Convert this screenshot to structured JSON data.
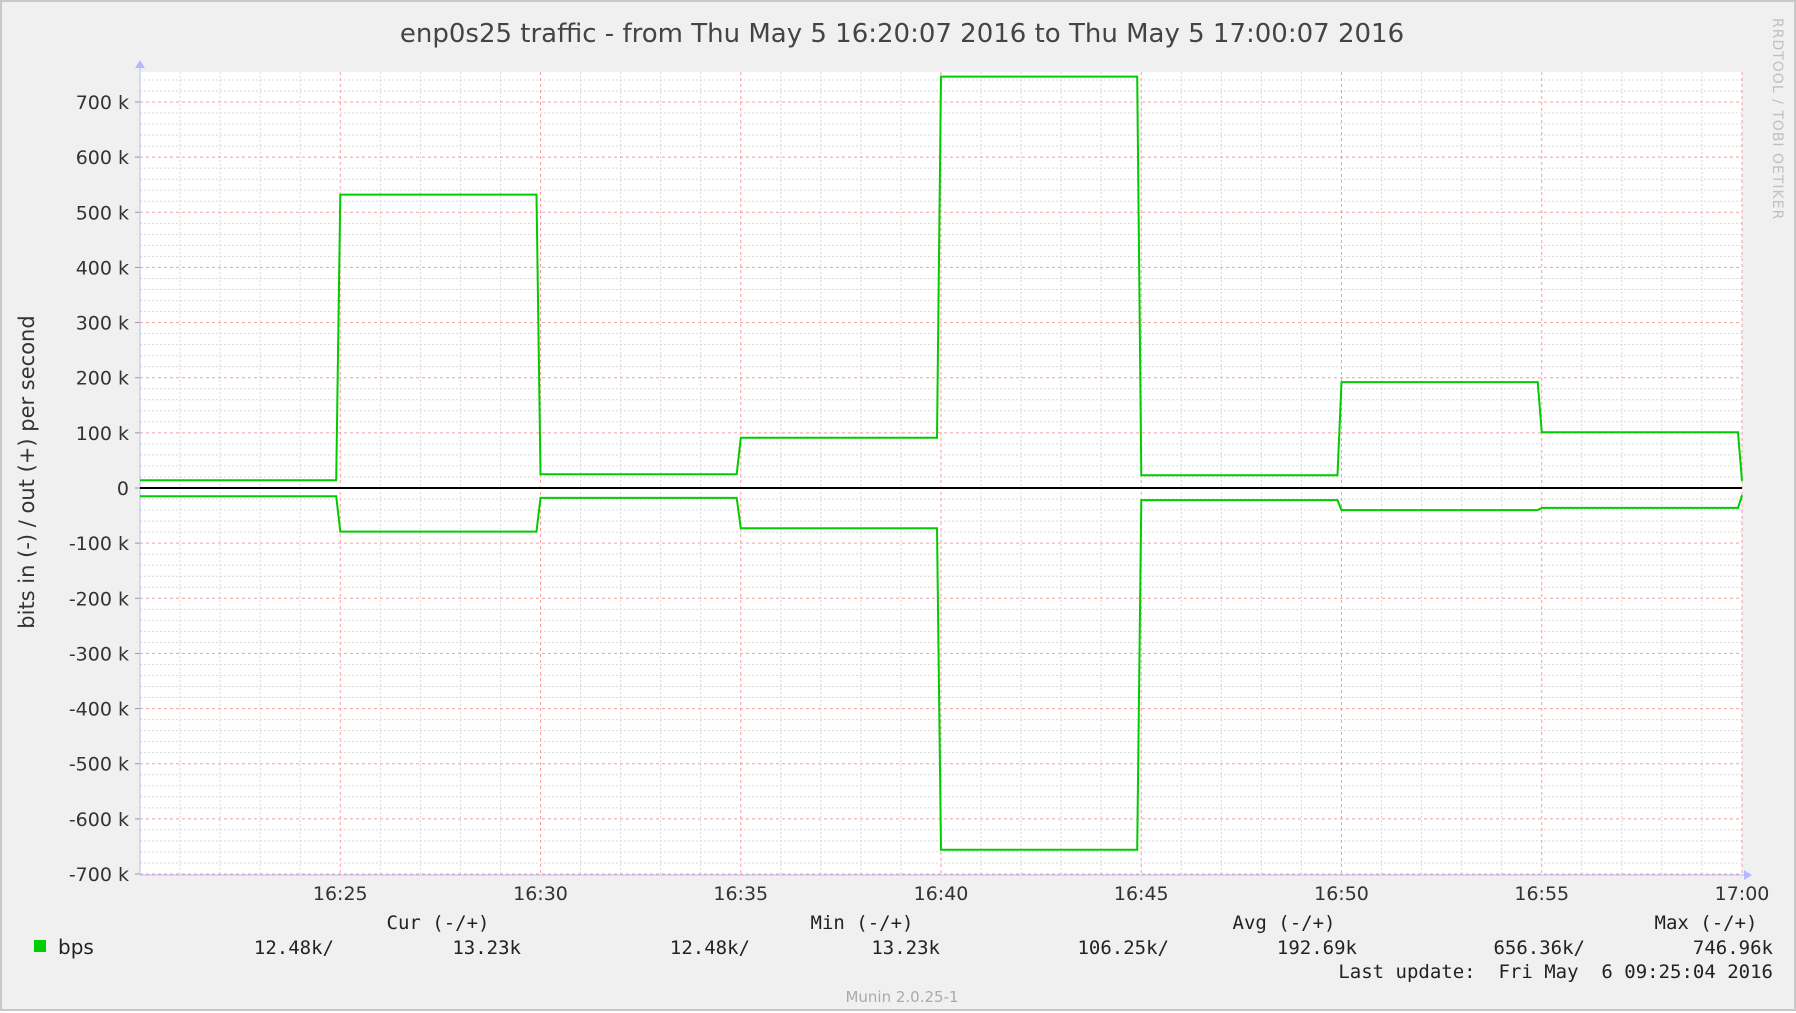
{
  "chart_data": {
    "type": "line",
    "title": "enp0s25 traffic - from Thu May  5 16:20:07 2016 to Thu May  5 17:00:07 2016",
    "ylabel": "bits in (-) / out (+) per second",
    "xlabel": "",
    "x_ticks": [
      "16:25",
      "16:30",
      "16:35",
      "16:40",
      "16:45",
      "16:50",
      "16:55",
      "17:00"
    ],
    "y_ticks": [
      "700 k",
      "600 k",
      "500 k",
      "400 k",
      "300 k",
      "200 k",
      "100 k",
      "0",
      "-100 k",
      "-200 k",
      "-300 k",
      "-400 k",
      "-500 k",
      "-600 k",
      "-700 k"
    ],
    "ylim": [
      -700,
      750
    ],
    "y_unit": "k",
    "x_unit": "minutes past 16:20",
    "xlim": [
      0,
      40
    ],
    "grid": true,
    "series": [
      {
        "name": "",
        "points": [
          [
            0,
            14
          ],
          [
            4.9,
            14
          ],
          [
            5,
            532
          ],
          [
            9.9,
            532
          ],
          [
            10,
            25
          ],
          [
            14.9,
            25
          ],
          [
            15,
            91
          ],
          [
            19.9,
            91
          ],
          [
            20,
            746
          ],
          [
            24.9,
            746
          ],
          [
            25,
            23
          ],
          [
            29.9,
            23
          ],
          [
            30,
            192
          ],
          [
            34.9,
            192
          ],
          [
            35,
            101
          ],
          [
            39.9,
            101
          ],
          [
            40,
            13
          ]
        ]
      },
      {
        "name": "",
        "points": [
          [
            0,
            -15
          ],
          [
            4.9,
            -15
          ],
          [
            5,
            -79
          ],
          [
            9.9,
            -79
          ],
          [
            10,
            -18
          ],
          [
            14.9,
            -18
          ],
          [
            15,
            -73
          ],
          [
            19.9,
            -73
          ],
          [
            20,
            -656
          ],
          [
            24.9,
            -656
          ],
          [
            25,
            -22
          ],
          [
            29.9,
            -22
          ],
          [
            30,
            -40
          ],
          [
            34.9,
            -40
          ],
          [
            35,
            -36
          ],
          [
            39.9,
            -36
          ],
          [
            40,
            -13
          ]
        ]
      }
    ],
    "colors": {
      "line": "#00cc00",
      "zero": "#000000",
      "major_grid": "#f0a0a0",
      "minor_grid": "#d8d8d8",
      "background": "#ffffff",
      "frame": "#f0f0f0"
    }
  },
  "watermark": "RRDTOOL / TOBI OETIKER",
  "legend": {
    "headers": [
      "Cur (-/+)",
      "Min (-/+)",
      "Avg (-/+)",
      "Max (-/+)"
    ],
    "row": {
      "label": "bps",
      "values": [
        "12.48k/",
        "13.23k",
        "12.48k/",
        "13.23k",
        "106.25k/",
        "192.69k",
        "656.36k/",
        "746.96k"
      ]
    },
    "last_update": "Last update:  Fri May  6 09:25:04 2016"
  },
  "footer": "Munin 2.0.25-1"
}
